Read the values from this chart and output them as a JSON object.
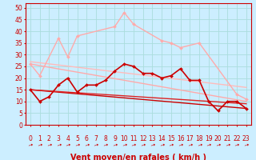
{
  "background_color": "#cceeff",
  "grid_color": "#aadddd",
  "xlabel": "Vent moyen/en rafales ( km/h )",
  "xlabel_color": "#cc0000",
  "xlabel_fontsize": 7,
  "xtick_fontsize": 5.5,
  "ytick_fontsize": 5.5,
  "ylim": [
    0,
    52
  ],
  "xlim": [
    -0.5,
    23.5
  ],
  "yticks": [
    0,
    5,
    10,
    15,
    20,
    25,
    30,
    35,
    40,
    45,
    50
  ],
  "xticks": [
    0,
    1,
    2,
    3,
    4,
    5,
    6,
    7,
    8,
    9,
    10,
    11,
    12,
    13,
    14,
    15,
    16,
    17,
    18,
    19,
    20,
    21,
    22,
    23
  ],
  "lines": [
    {
      "x": [
        0,
        1,
        3,
        4,
        5,
        9,
        10,
        11,
        14,
        15,
        16,
        18,
        22,
        23
      ],
      "y": [
        26,
        21,
        37,
        29,
        38,
        42,
        48,
        43,
        36,
        35,
        33,
        35,
        13,
        11
      ],
      "color": "#ffaaaa",
      "linewidth": 1.0,
      "marker": "D",
      "markersize": 2.0,
      "linestyle": "-",
      "zorder": 3
    },
    {
      "x": [
        0,
        23
      ],
      "y": [
        26,
        10
      ],
      "color": "#ffaaaa",
      "linewidth": 1.0,
      "marker": null,
      "markersize": 0,
      "linestyle": "-",
      "zorder": 2
    },
    {
      "x": [
        0,
        23
      ],
      "y": [
        27,
        16
      ],
      "color": "#ffbbbb",
      "linewidth": 1.0,
      "marker": null,
      "markersize": 0,
      "linestyle": "-",
      "zorder": 2
    },
    {
      "x": [
        0,
        1,
        2,
        3,
        4,
        5,
        6,
        7,
        8,
        9,
        10,
        11,
        12,
        13,
        14,
        15,
        16,
        17,
        18,
        19,
        20,
        21,
        22,
        23
      ],
      "y": [
        15,
        10,
        12,
        17,
        20,
        14,
        17,
        17,
        19,
        23,
        26,
        25,
        22,
        22,
        20,
        21,
        24,
        19,
        19,
        10,
        6,
        10,
        10,
        7
      ],
      "color": "#cc0000",
      "linewidth": 1.2,
      "marker": "D",
      "markersize": 2.0,
      "linestyle": "-",
      "zorder": 4
    },
    {
      "x": [
        0,
        23
      ],
      "y": [
        15,
        7
      ],
      "color": "#cc0000",
      "linewidth": 1.0,
      "marker": null,
      "markersize": 0,
      "linestyle": "-",
      "zorder": 2
    },
    {
      "x": [
        0,
        23
      ],
      "y": [
        15,
        9
      ],
      "color": "#dd2222",
      "linewidth": 1.0,
      "marker": null,
      "markersize": 0,
      "linestyle": "-",
      "zorder": 2
    }
  ],
  "tick_color": "#cc0000",
  "axis_color": "#cc0000",
  "wind_icon": "↗",
  "wind_icon_color": "#cc0000",
  "wind_icon_fontsize": 5
}
